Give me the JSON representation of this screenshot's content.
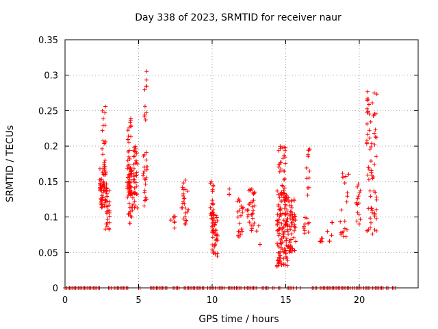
{
  "chart_data": {
    "type": "scatter",
    "title": "Day 338 of 2023, SRMTID for receiver naur",
    "xlabel": "GPS time / hours",
    "ylabel": "SRMTID / TECUs",
    "xlim": [
      0,
      24
    ],
    "ylim": [
      0,
      0.35
    ],
    "x_ticks": [
      0,
      5,
      10,
      15,
      20
    ],
    "x_tick_labels": [
      "0",
      "5",
      "10",
      "15",
      "20"
    ],
    "y_ticks": [
      0,
      0.05,
      0.1,
      0.15,
      0.2,
      0.25,
      0.3,
      0.35
    ],
    "y_tick_labels": [
      "0",
      "0.05",
      "0.1",
      "0.15",
      "0.2",
      "0.25",
      "0.3",
      "0.35"
    ],
    "grid": true,
    "marker": "+",
    "color": "#ff0000",
    "series": [
      {
        "name": "SRMTID",
        "clusters": [
          {
            "x": [
              2.35,
              2.85
            ],
            "y": [
              0.11,
              0.17
            ],
            "n": 60
          },
          {
            "x": [
              2.5,
              2.75
            ],
            "y": [
              0.17,
              0.265
            ],
            "n": 18
          },
          {
            "x": [
              2.75,
              3.05
            ],
            "y": [
              0.08,
              0.15
            ],
            "n": 28
          },
          {
            "x": [
              4.2,
              4.55
            ],
            "y": [
              0.12,
              0.17
            ],
            "n": 45
          },
          {
            "x": [
              4.25,
              4.5
            ],
            "y": [
              0.17,
              0.25
            ],
            "n": 18
          },
          {
            "x": [
              4.3,
              4.6
            ],
            "y": [
              0.08,
              0.12
            ],
            "n": 12
          },
          {
            "x": [
              4.6,
              4.95
            ],
            "y": [
              0.11,
              0.2
            ],
            "n": 40
          },
          {
            "x": [
              5.3,
              5.6
            ],
            "y": [
              0.105,
              0.2
            ],
            "n": 22
          },
          {
            "x": [
              5.4,
              5.55
            ],
            "y": [
              0.22,
              0.312
            ],
            "n": 10
          },
          {
            "x": [
              7.1,
              7.5
            ],
            "y": [
              0.08,
              0.105
            ],
            "n": 7
          },
          {
            "x": [
              7.9,
              8.4
            ],
            "y": [
              0.085,
              0.153
            ],
            "n": 25
          },
          {
            "x": [
              9.85,
              10.1
            ],
            "y": [
              0.085,
              0.15
            ],
            "n": 25
          },
          {
            "x": [
              10.0,
              10.4
            ],
            "y": [
              0.04,
              0.105
            ],
            "n": 45
          },
          {
            "x": [
              11.0,
              11.2
            ],
            "y": [
              0.13,
              0.145
            ],
            "n": 3
          },
          {
            "x": [
              11.7,
              12.1
            ],
            "y": [
              0.06,
              0.13
            ],
            "n": 20
          },
          {
            "x": [
              12.2,
              12.5
            ],
            "y": [
              0.1,
              0.12
            ],
            "n": 6
          },
          {
            "x": [
              12.5,
              12.9
            ],
            "y": [
              0.075,
              0.14
            ],
            "n": 25
          },
          {
            "x": [
              13.0,
              13.3
            ],
            "y": [
              0.058,
              0.09
            ],
            "n": 3
          },
          {
            "x": [
              14.4,
              15.2
            ],
            "y": [
              0.03,
              0.14
            ],
            "n": 120
          },
          {
            "x": [
              14.5,
              15.0
            ],
            "y": [
              0.14,
              0.2
            ],
            "n": 25
          },
          {
            "x": [
              15.0,
              15.7
            ],
            "y": [
              0.05,
              0.13
            ],
            "n": 60
          },
          {
            "x": [
              16.2,
              16.6
            ],
            "y": [
              0.07,
              0.1
            ],
            "n": 10
          },
          {
            "x": [
              16.4,
              16.65
            ],
            "y": [
              0.115,
              0.205
            ],
            "n": 12
          },
          {
            "x": [
              17.3,
              17.6
            ],
            "y": [
              0.062,
              0.07
            ],
            "n": 6
          },
          {
            "x": [
              17.8,
              18.2
            ],
            "y": [
              0.06,
              0.095
            ],
            "n": 6
          },
          {
            "x": [
              18.7,
              19.3
            ],
            "y": [
              0.07,
              0.165
            ],
            "n": 20
          },
          {
            "x": [
              19.8,
              20.1
            ],
            "y": [
              0.085,
              0.15
            ],
            "n": 15
          },
          {
            "x": [
              20.5,
              21.2
            ],
            "y": [
              0.073,
              0.28
            ],
            "n": 70
          }
        ],
        "zero_segments": [
          [
            0.0,
            2.45
          ],
          [
            2.95,
            3.25
          ],
          [
            3.35,
            4.35
          ],
          [
            5.0,
            5.15
          ],
          [
            5.8,
            7.0
          ],
          [
            7.35,
            7.85
          ],
          [
            8.1,
            9.5
          ],
          [
            9.7,
            10.25
          ],
          [
            10.4,
            10.9
          ],
          [
            11.1,
            11.55
          ],
          [
            11.65,
            12.05
          ],
          [
            12.2,
            13.1
          ],
          [
            13.4,
            13.9
          ],
          [
            14.1,
            14.3
          ],
          [
            14.5,
            14.65
          ],
          [
            15.1,
            15.6
          ],
          [
            15.75,
            15.85
          ],
          [
            16.0,
            16.1
          ],
          [
            16.8,
            17.2
          ],
          [
            17.35,
            17.7
          ],
          [
            17.75,
            19.4
          ],
          [
            19.55,
            19.7
          ],
          [
            19.8,
            20.15
          ],
          [
            20.3,
            20.75
          ],
          [
            20.9,
            21.7
          ],
          [
            21.85,
            22.05
          ],
          [
            22.25,
            22.5
          ]
        ]
      }
    ]
  }
}
